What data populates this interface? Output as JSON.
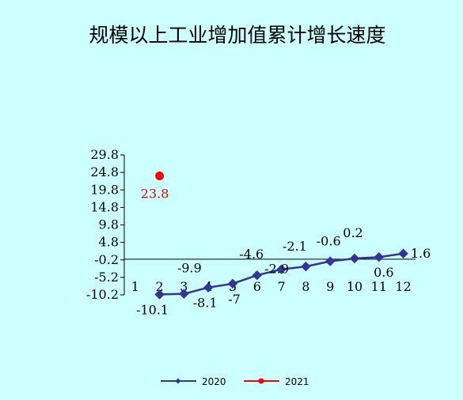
{
  "chart_data": {
    "type": "line",
    "title": "规模以上工业增加值累计增长速度",
    "xlabel": "",
    "ylabel": "",
    "ylim": [
      -10.2,
      29.8
    ],
    "yticks": [
      "29.8",
      "24.8",
      "19.8",
      "14.8",
      "9.8",
      "4.8",
      "-0.2",
      "-5.2",
      "-10.2"
    ],
    "categories": [
      "1",
      "2",
      "3",
      "4",
      "5",
      "6",
      "7",
      "8",
      "9",
      "10",
      "11",
      "12"
    ],
    "series": [
      {
        "name": "2020",
        "color": "#333399",
        "marker": "diamond",
        "x": [
          2,
          3,
          4,
          5,
          6,
          7,
          8,
          9,
          10,
          11,
          12
        ],
        "values": [
          -10.1,
          -9.9,
          -8.1,
          -7,
          -4.6,
          -2.9,
          -2.1,
          -0.6,
          0.2,
          0.6,
          1.6
        ],
        "labels": [
          "-10.1",
          "-9.9",
          "-8.1",
          "-7",
          "-4.6",
          "-2.9",
          "-2.1",
          "-0.6",
          "0.2",
          "0.6",
          "1.6"
        ]
      },
      {
        "name": "2021",
        "color": "#ff0000",
        "marker": "circle",
        "x": [
          2
        ],
        "values": [
          23.8
        ],
        "labels": [
          "23.8"
        ]
      }
    ],
    "legend": "bottom"
  }
}
